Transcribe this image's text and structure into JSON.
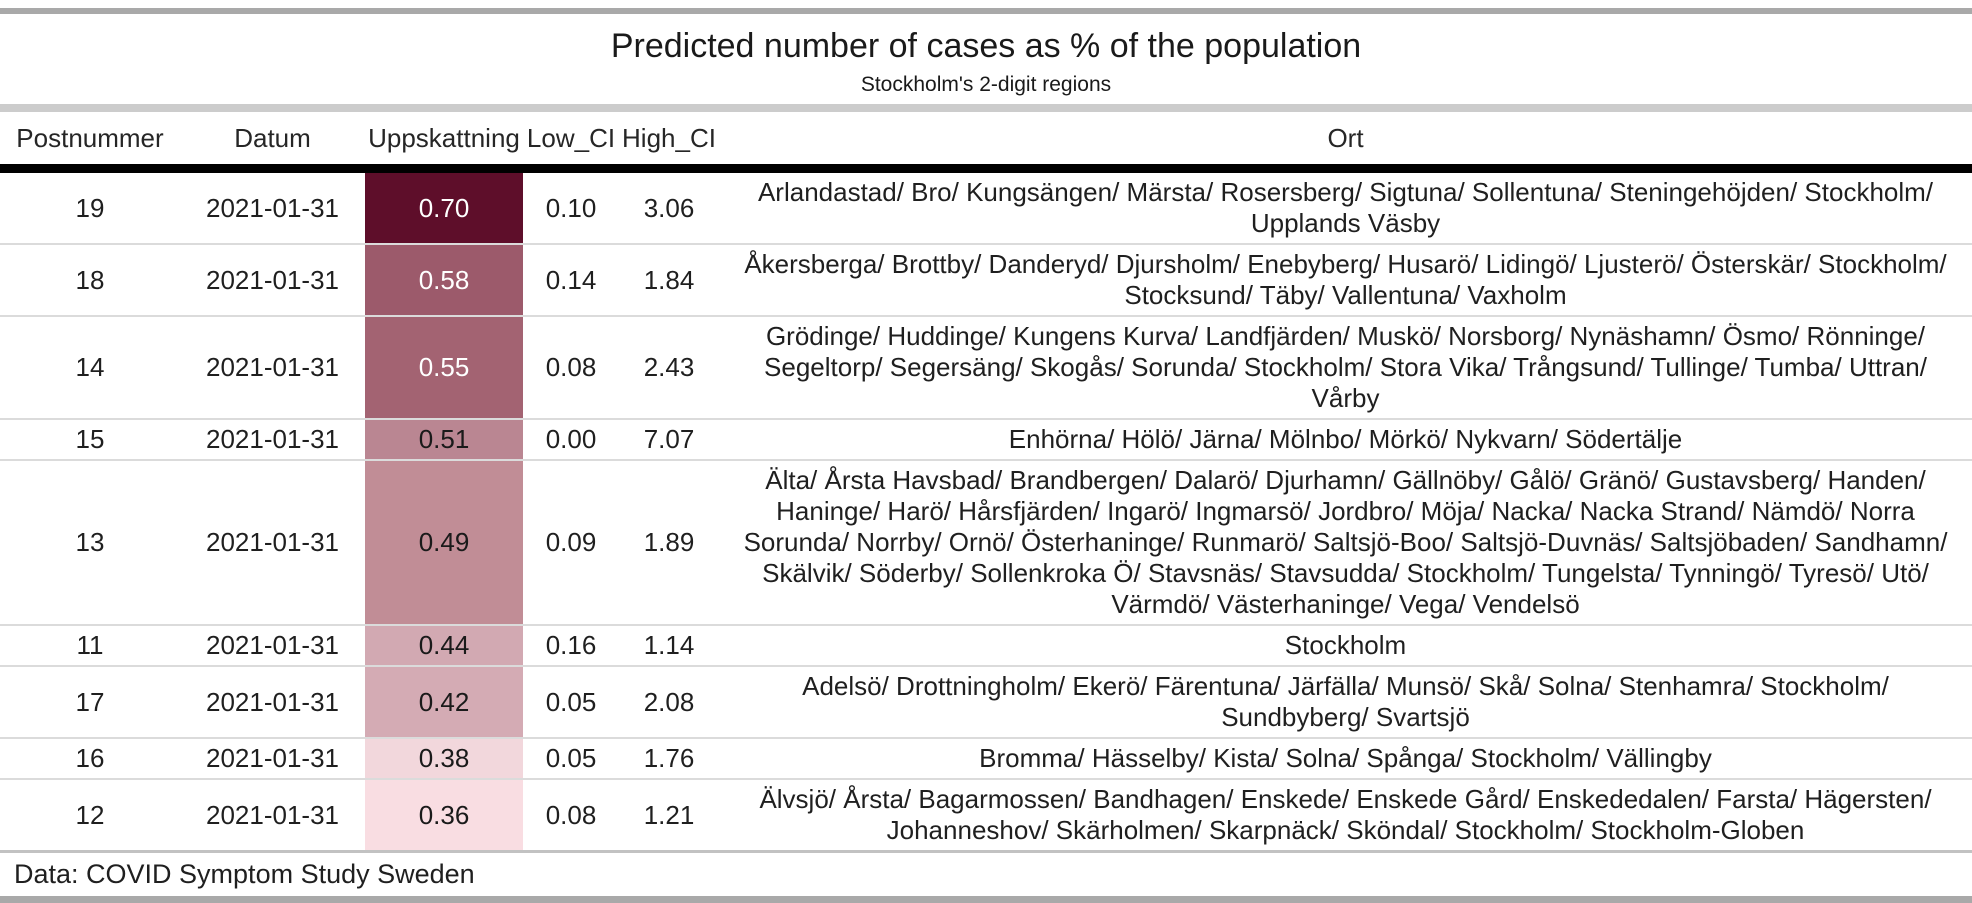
{
  "header": {
    "title": "Predicted number of cases as % of the population",
    "subtitle": "Stockholm's 2-digit regions"
  },
  "footer": {
    "caption": "Data: COVID Symptom Study Sweden"
  },
  "colors": {
    "rule_dark": "#A9A9A9",
    "rule_light": "#CCCCCC",
    "footer_rule": "#C2C2C2",
    "header_rule": "#000000",
    "heat_max": "#5E0E2A",
    "heat_min": "#F9DDE2"
  },
  "table": {
    "columns": [
      "Postnummer",
      "Datum",
      "Uppskattning",
      "Low_CI",
      "High_CI",
      "Ort"
    ],
    "rows": [
      {
        "postnummer": "19",
        "datum": "2021-01-31",
        "uppskattning": "0.70",
        "low_ci": "0.10",
        "high_ci": "3.06",
        "cell_bg": "#5E0E2A",
        "cell_fg": "#FFFFFF",
        "ort": "Arlandastad/ Bro/ Kungsängen/ Märsta/ Rosersberg/ Sigtuna/ Sollentuna/ Steningehöjden/ Stockholm/ Upplands Väsby"
      },
      {
        "postnummer": "18",
        "datum": "2021-01-31",
        "uppskattning": "0.58",
        "low_ci": "0.14",
        "high_ci": "1.84",
        "cell_bg": "#9C5A6B",
        "cell_fg": "#FFFFFF",
        "ort": "Åkersberga/ Brottby/ Danderyd/ Djursholm/ Enebyberg/ Husarö/ Lidingö/ Ljusterö/ Österskär/ Stockholm/ Stocksund/ Täby/ Vallentuna/ Vaxholm"
      },
      {
        "postnummer": "14",
        "datum": "2021-01-31",
        "uppskattning": "0.55",
        "low_ci": "0.08",
        "high_ci": "2.43",
        "cell_bg": "#A36372",
        "cell_fg": "#FFFFFF",
        "ort": "Grödinge/ Huddinge/ Kungens Kurva/ Landfjärden/ Muskö/ Norsborg/ Nynäshamn/ Ösmo/ Rönninge/ Segeltorp/ Segersäng/ Skogås/ Sorunda/ Stockholm/ Stora Vika/ Trångsund/ Tullinge/ Tumba/ Uttran/ Vårby"
      },
      {
        "postnummer": "15",
        "datum": "2021-01-31",
        "uppskattning": "0.51",
        "low_ci": "0.00",
        "high_ci": "7.07",
        "cell_bg": "#BA8692",
        "cell_fg": "#1A1A1A",
        "ort": "Enhörna/ Hölö/ Järna/ Mölnbo/ Mörkö/ Nykvarn/ Södertälje"
      },
      {
        "postnummer": "13",
        "datum": "2021-01-31",
        "uppskattning": "0.49",
        "low_ci": "0.09",
        "high_ci": "1.89",
        "cell_bg": "#C18D96",
        "cell_fg": "#1A1A1A",
        "ort": "Älta/ Årsta Havsbad/ Brandbergen/ Dalarö/ Djurhamn/ Gällnöby/ Gålö/ Gränö/ Gustavsberg/ Handen/ Haninge/ Harö/ Hårsfjärden/ Ingarö/ Ingmarsö/ Jordbro/ Möja/ Nacka/ Nacka Strand/ Nämdö/ Norra Sorunda/ Norrby/ Ornö/ Österhaninge/ Runmarö/ Saltsjö-Boo/ Saltsjö-Duvnäs/ Saltsjöbaden/ Sandhamn/ Skälvik/ Söderby/ Sollenkroka Ö/ Stavsnäs/ Stavsudda/ Stockholm/ Tungelsta/ Tynningö/ Tyresö/ Utö/ Värmdö/ Västerhaninge/ Vega/ Vendelsö"
      },
      {
        "postnummer": "11",
        "datum": "2021-01-31",
        "uppskattning": "0.44",
        "low_ci": "0.16",
        "high_ci": "1.14",
        "cell_bg": "#D2A9B2",
        "cell_fg": "#1A1A1A",
        "ort": "Stockholm"
      },
      {
        "postnummer": "17",
        "datum": "2021-01-31",
        "uppskattning": "0.42",
        "low_ci": "0.05",
        "high_ci": "2.08",
        "cell_bg": "#D4ABB4",
        "cell_fg": "#1A1A1A",
        "ort": "Adelsö/ Drottningholm/ Ekerö/ Färentuna/ Järfälla/ Munsö/ Skå/ Solna/ Stenhamra/ Stockholm/ Sundbyberg/ Svartsjö"
      },
      {
        "postnummer": "16",
        "datum": "2021-01-31",
        "uppskattning": "0.38",
        "low_ci": "0.05",
        "high_ci": "1.76",
        "cell_bg": "#F2D7DC",
        "cell_fg": "#1A1A1A",
        "ort": "Bromma/ Hässelby/ Kista/ Solna/ Spånga/ Stockholm/ Vällingby"
      },
      {
        "postnummer": "12",
        "datum": "2021-01-31",
        "uppskattning": "0.36",
        "low_ci": "0.08",
        "high_ci": "1.21",
        "cell_bg": "#F9DDE2",
        "cell_fg": "#1A1A1A",
        "ort": "Älvsjö/ Årsta/ Bagarmossen/ Bandhagen/ Enskede/ Enskede Gård/ Enskededalen/ Farsta/ Hägersten/ Johanneshov/ Skärholmen/ Skarpnäck/ Sköndal/ Stockholm/ Stockholm-Globen"
      }
    ]
  },
  "chart_data": {
    "type": "table",
    "title": "Predicted number of cases as % of the population",
    "subtitle": "Stockholm's 2-digit regions",
    "caption": "Data: COVID Symptom Study Sweden",
    "columns": [
      "Postnummer",
      "Datum",
      "Uppskattning",
      "Low_CI",
      "High_CI",
      "Ort"
    ],
    "rows": [
      [
        19,
        "2021-01-31",
        0.7,
        0.1,
        3.06,
        "Arlandastad/ Bro/ Kungsängen/ Märsta/ Rosersberg/ Sigtuna/ Sollentuna/ Steningehöjden/ Stockholm/ Upplands Väsby"
      ],
      [
        18,
        "2021-01-31",
        0.58,
        0.14,
        1.84,
        "Åkersberga/ Brottby/ Danderyd/ Djursholm/ Enebyberg/ Husarö/ Lidingö/ Ljusterö/ Österskär/ Stockholm/ Stocksund/ Täby/ Vallentuna/ Vaxholm"
      ],
      [
        14,
        "2021-01-31",
        0.55,
        0.08,
        2.43,
        "Grödinge/ Huddinge/ Kungens Kurva/ Landfjärden/ Muskö/ Norsborg/ Nynäshamn/ Ösmo/ Rönninge/ Segeltorp/ Segersäng/ Skogås/ Sorunda/ Stockholm/ Stora Vika/ Trångsund/ Tullinge/ Tumba/ Uttran/ Vårby"
      ],
      [
        15,
        "2021-01-31",
        0.51,
        0.0,
        7.07,
        "Enhörna/ Hölö/ Järna/ Mölnbo/ Mörkö/ Nykvarn/ Södertälje"
      ],
      [
        13,
        "2021-01-31",
        0.49,
        0.09,
        1.89,
        "Älta/ Årsta Havsbad/ Brandbergen/ Dalarö/ Djurhamn/ Gällnöby/ Gålö/ Gränö/ Gustavsberg/ Handen/ Haninge/ Harö/ Hårsfjärden/ Ingarö/ Ingmarsö/ Jordbro/ Möja/ Nacka/ Nacka Strand/ Nämdö/ Norra Sorunda/ Norrby/ Ornö/ Österhaninge/ Runmarö/ Saltsjö-Boo/ Saltsjö-Duvnäs/ Saltsjöbaden/ Sandhamn/ Skälvik/ Söderby/ Sollenkroka Ö/ Stavsnäs/ Stavsudda/ Stockholm/ Tungelsta/ Tynningö/ Tyresö/ Utö/ Värmdö/ Västerhaninge/ Vega/ Vendelsö"
      ],
      [
        11,
        "2021-01-31",
        0.44,
        0.16,
        1.14,
        "Stockholm"
      ],
      [
        17,
        "2021-01-31",
        0.42,
        0.05,
        2.08,
        "Adelsö/ Drottningholm/ Ekerö/ Färentuna/ Järfälla/ Munsö/ Skå/ Solna/ Stenhamra/ Stockholm/ Sundbyberg/ Svartsjö"
      ],
      [
        16,
        "2021-01-31",
        0.38,
        0.05,
        1.76,
        "Bromma/ Hässelby/ Kista/ Solna/ Spånga/ Stockholm/ Vällingby"
      ],
      [
        12,
        "2021-01-31",
        0.36,
        0.08,
        1.21,
        "Älvsjö/ Årsta/ Bagarmossen/ Bandhagen/ Enskede/ Enskede Gård/ Enskededalen/ Farsta/ Hägersten/ Johanneshov/ Skärholmen/ Skarpnäck/ Sköndal/ Stockholm/ Stockholm-Globen"
      ]
    ],
    "color_encoding": "Uppskattning cells shaded from dark maroon #5E0E2A (0.70, high) to light pink #F9DDE2 (0.36, low)",
    "legend_position": "none",
    "grid": "horizontal row separators only"
  }
}
